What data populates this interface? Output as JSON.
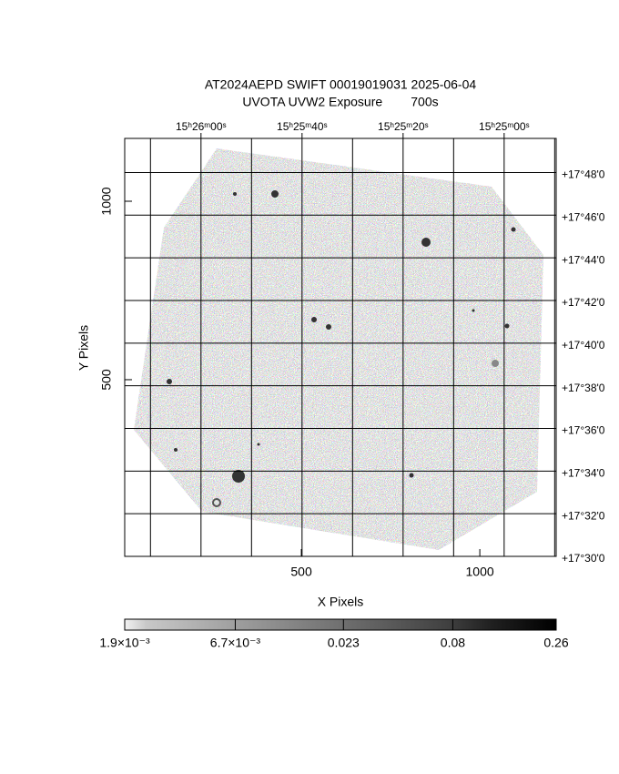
{
  "chart_data": {
    "type": "image",
    "title": "AT2024AEPD SWIFT 00019019031 2025-06-04",
    "subtitle": "UVOTA UVW2 Exposure        700s",
    "xlabel": "X Pixels",
    "ylabel": "Y Pixels",
    "xlim": [
      5,
      1214
    ],
    "xticks": [
      500,
      1000
    ],
    "ylim": [
      5,
      1176
    ],
    "yticks": [
      500,
      1000
    ],
    "x2lim": [
      55575.1,
      55489.7
    ],
    "x2ticks": [
      {
        "value": 55560,
        "label": "15ʰ26ᵐ00ˢ"
      },
      {
        "value": 55540,
        "label": "15ʰ25ᵐ40ˢ"
      },
      {
        "value": 55520,
        "label": "15ʰ25ᵐ20ˢ"
      },
      {
        "value": 55500,
        "label": "15ʰ25ᵐ00ˢ"
      }
    ],
    "x2grid": [
      55570,
      55560,
      55550,
      55540,
      55530,
      55520,
      55510,
      55500,
      55490
    ],
    "y2lim": [
      30,
      49.6
    ],
    "y2ticks": [
      {
        "value": 48,
        "label": "+17°48'0"
      },
      {
        "value": 46,
        "label": "+17°46'0"
      },
      {
        "value": 44,
        "label": "+17°44'0"
      },
      {
        "value": 42,
        "label": "+17°42'0"
      },
      {
        "value": 40,
        "label": "+17°40'0"
      },
      {
        "value": 38,
        "label": "+17°38'0"
      },
      {
        "value": 36,
        "label": "+17°36'0"
      },
      {
        "value": 34,
        "label": "+17°34'0"
      },
      {
        "value": 32,
        "label": "+17°32'0"
      },
      {
        "value": 30,
        "label": "+17°30'0"
      }
    ],
    "grid": true,
    "colorbar": {
      "scale": "log",
      "lim": [
        0.0019,
        0.26
      ],
      "ticks": [
        {
          "value": 0.0019,
          "label": "1.9×10⁻³"
        },
        {
          "value": 0.0067,
          "label": "6.7×10⁻³"
        },
        0.023,
        0.08,
        0.26
      ]
    }
  }
}
